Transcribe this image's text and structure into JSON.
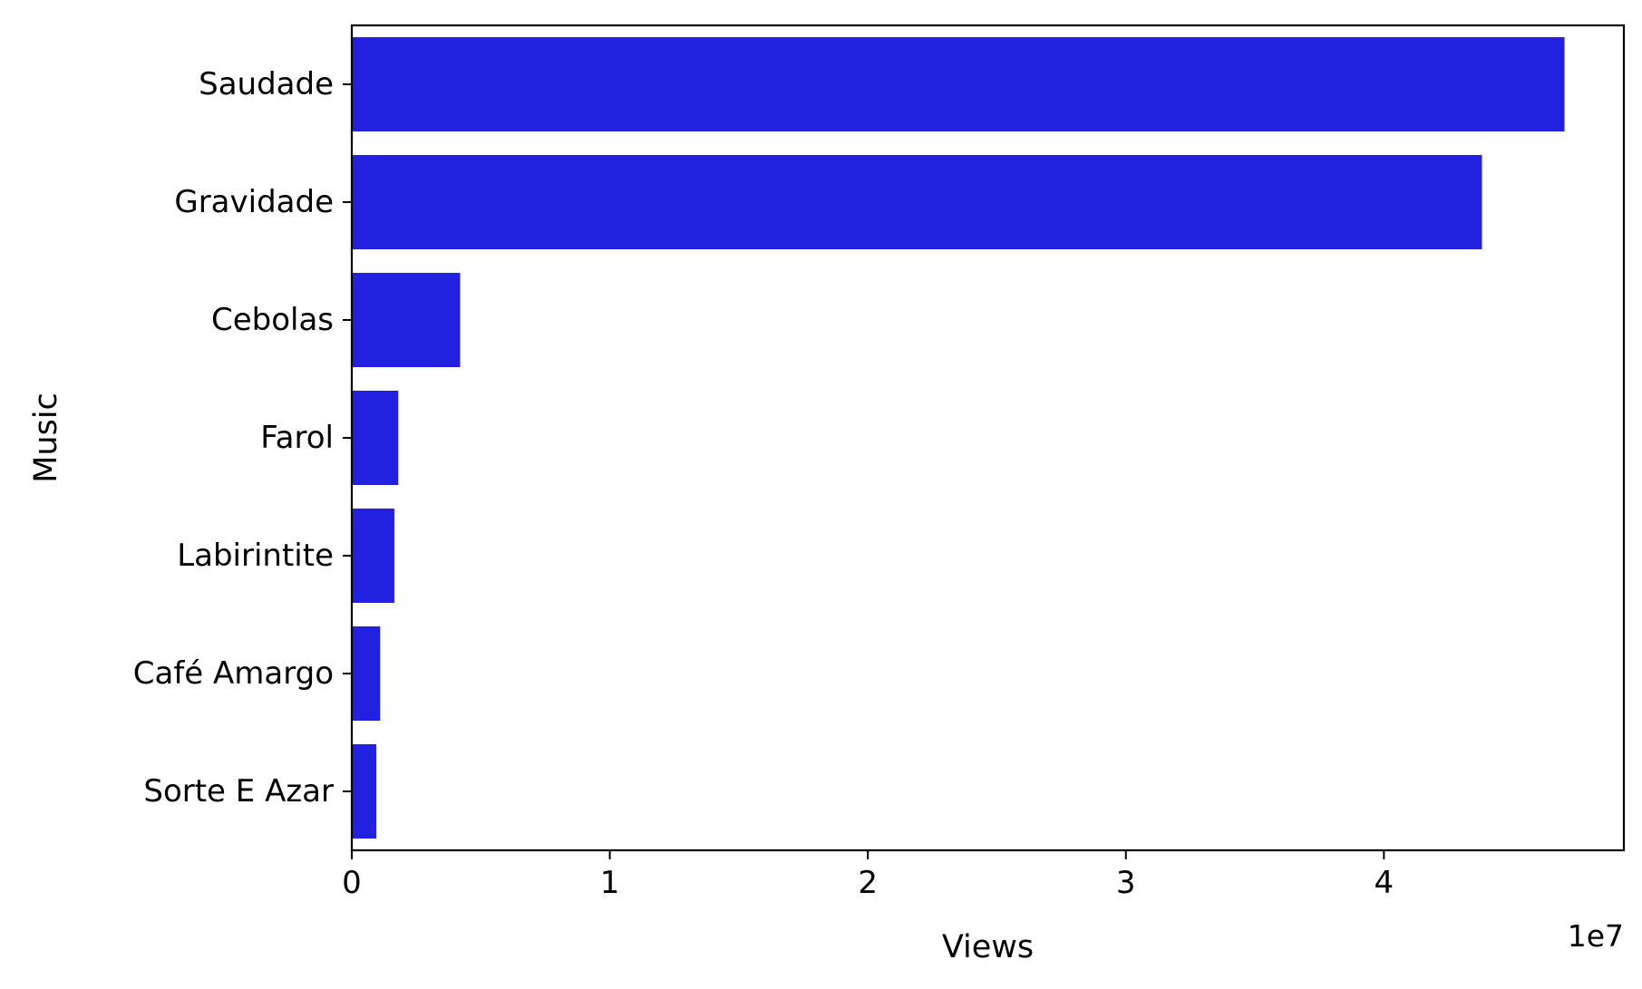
{
  "chart_data": {
    "type": "bar",
    "orientation": "horizontal",
    "categories": [
      "Saudade",
      "Gravidade",
      "Cebolas",
      "Farol",
      "Labirintite",
      "Café Amargo",
      "Sorte E Azar"
    ],
    "values": [
      47000000,
      43800000,
      4200000,
      1800000,
      1650000,
      1100000,
      950000
    ],
    "xlabel": "Views",
    "ylabel": "Music",
    "xlim": [
      0,
      49300000
    ],
    "x_ticks": [
      0,
      10000000,
      20000000,
      30000000,
      40000000
    ],
    "x_tick_labels": [
      "0",
      "1",
      "2",
      "3",
      "4"
    ],
    "x_offset_label": "1e7",
    "bar_color": "#2121df",
    "grid": false
  }
}
